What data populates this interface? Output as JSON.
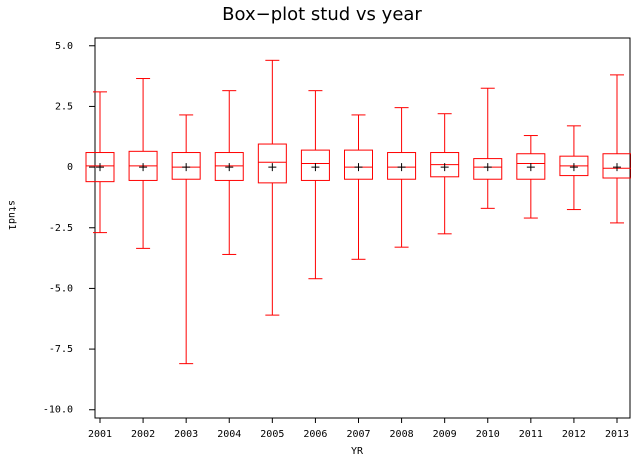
{
  "chart_data": {
    "type": "box",
    "title": "Box−plot stud vs year",
    "x_label": "YR",
    "y_label": "stud1",
    "categories": [
      "2001",
      "2002",
      "2003",
      "2004",
      "2005",
      "2006",
      "2007",
      "2008",
      "2009",
      "2010",
      "2011",
      "2012",
      "2013"
    ],
    "low": [
      -2.7,
      -3.35,
      -8.1,
      -3.6,
      -6.1,
      -4.6,
      -3.8,
      -3.3,
      -2.75,
      -1.7,
      -2.1,
      -1.75,
      -2.3
    ],
    "q1": [
      -0.6,
      -0.55,
      -0.5,
      -0.55,
      -0.65,
      -0.55,
      -0.5,
      -0.5,
      -0.4,
      -0.5,
      -0.5,
      -0.35,
      -0.45
    ],
    "median": [
      0.05,
      0.05,
      0,
      0.05,
      0.2,
      0.15,
      0,
      0,
      0.1,
      0,
      0.15,
      0.05,
      -0.05
    ],
    "q3": [
      0.6,
      0.65,
      0.6,
      0.6,
      0.95,
      0.7,
      0.7,
      0.6,
      0.6,
      0.35,
      0.55,
      0.45,
      0.55
    ],
    "high": [
      3.1,
      3.65,
      2.15,
      3.15,
      4.4,
      3.15,
      2.15,
      2.45,
      2.2,
      3.25,
      1.3,
      1.7,
      3.8
    ],
    "mean": [
      0,
      0,
      0,
      0,
      0,
      0,
      0,
      0,
      0,
      0,
      0,
      0,
      0
    ],
    "color": "#ff0000",
    "mean_color": "#000000",
    "ylim": [
      -10.34,
      5.32
    ],
    "yticks": [
      {
        "value": 5,
        "label": "5.0"
      },
      2.5,
      0,
      -2.5,
      {
        "value": -5,
        "label": "-5.0"
      },
      -7.5,
      {
        "value": -10,
        "label": "-10.0"
      }
    ]
  }
}
